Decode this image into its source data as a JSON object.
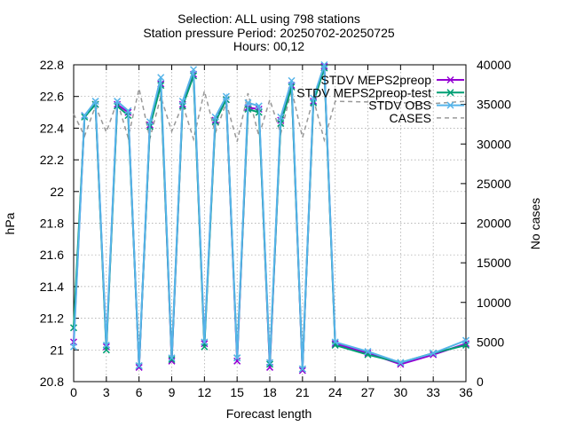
{
  "chart_data": {
    "type": "line",
    "title_lines": [
      "Selection: ALL using   798 stations",
      "Station pressure   Period: 20250702-20250725",
      "Hours: 00,12"
    ],
    "xlabel": "Forecast length",
    "ylabel": "hPa",
    "y2label": "No cases",
    "xlim": [
      0,
      36
    ],
    "ylim": [
      20.8,
      22.8
    ],
    "y2lim": [
      0,
      40000
    ],
    "xticks": [
      0,
      3,
      6,
      9,
      12,
      15,
      18,
      21,
      24,
      27,
      30,
      33,
      36
    ],
    "yticks": [
      20.8,
      21,
      21.2,
      21.4,
      21.6,
      21.8,
      22,
      22.2,
      22.4,
      22.6,
      22.8
    ],
    "y2ticks": [
      0,
      5000,
      10000,
      15000,
      20000,
      25000,
      30000,
      35000,
      40000
    ],
    "grid": true,
    "legend_position": "top-right",
    "x": [
      0,
      1,
      2,
      3,
      4,
      5,
      6,
      7,
      8,
      9,
      10,
      11,
      12,
      13,
      14,
      15,
      16,
      17,
      18,
      19,
      20,
      21,
      22,
      23,
      24,
      27,
      30,
      33,
      36
    ],
    "series": [
      {
        "name": "STDV MEPS2preop",
        "axis": "left",
        "color": "#9400d3",
        "marker": "x",
        "dash": "solid",
        "values": [
          21.05,
          22.48,
          22.55,
          21.02,
          22.55,
          22.5,
          20.89,
          22.42,
          22.68,
          20.93,
          22.55,
          22.74,
          21.04,
          22.45,
          22.58,
          20.93,
          22.53,
          22.52,
          20.89,
          22.45,
          22.67,
          20.87,
          22.57,
          22.79,
          21.04,
          20.98,
          20.91,
          20.97,
          21.04
        ]
      },
      {
        "name": "STDV MEPS2preop-test",
        "axis": "left",
        "color": "#009e73",
        "marker": "x",
        "dash": "solid",
        "values": [
          21.14,
          22.47,
          22.55,
          21.0,
          22.54,
          22.48,
          20.9,
          22.41,
          22.67,
          20.94,
          22.54,
          22.73,
          21.02,
          22.44,
          22.58,
          20.95,
          22.52,
          22.5,
          20.91,
          22.43,
          22.66,
          20.88,
          22.56,
          22.78,
          21.03,
          20.97,
          20.92,
          20.98,
          21.03
        ]
      },
      {
        "name": "STDV OBS",
        "axis": "left",
        "color": "#56b4e9",
        "marker": "x",
        "dash": "solid",
        "values": [
          21.02,
          22.48,
          22.57,
          21.03,
          22.57,
          22.51,
          20.9,
          22.44,
          22.72,
          20.95,
          22.57,
          22.77,
          21.05,
          22.47,
          22.6,
          20.95,
          22.56,
          22.54,
          20.92,
          22.47,
          22.7,
          20.88,
          22.59,
          22.8,
          21.05,
          20.99,
          20.92,
          20.98,
          21.06
        ]
      },
      {
        "name": "CASES",
        "axis": "right",
        "color": "#999999",
        "marker": "none",
        "dash": "dashed",
        "values": [
          33800,
          31000,
          34800,
          31500,
          35400,
          30800,
          37000,
          30700,
          36000,
          31600,
          35000,
          30600,
          36700,
          31400,
          35200,
          30300,
          36400,
          31000,
          35600,
          31300,
          36900,
          30800,
          35700,
          30500,
          35400,
          35300,
          35200,
          35100,
          35400
        ]
      }
    ]
  }
}
